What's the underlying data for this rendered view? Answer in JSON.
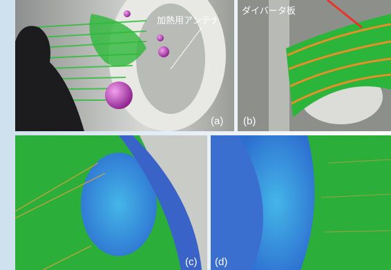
{
  "panels": [
    {
      "label": "(a)",
      "annotation": "加熱用アンテナ"
    },
    {
      "label": "(b)",
      "annotation": "ダイバータ板"
    },
    {
      "label": "(c)"
    },
    {
      "label": "(d)"
    }
  ]
}
